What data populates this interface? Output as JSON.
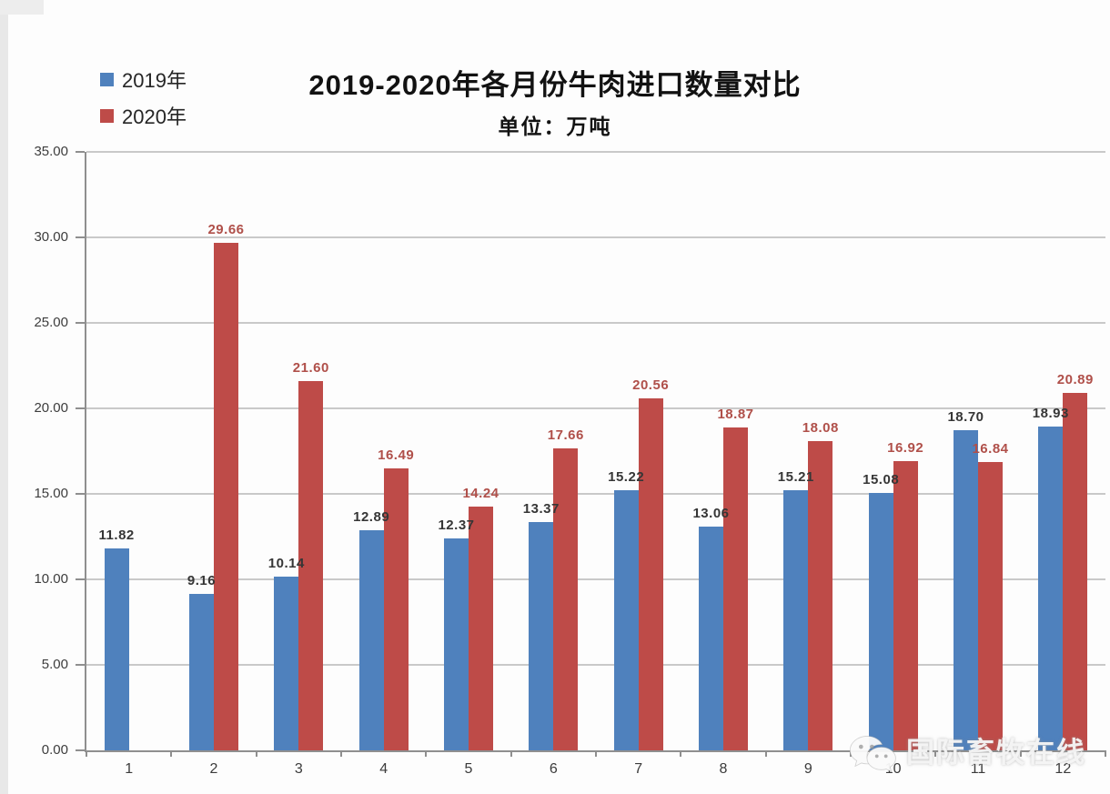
{
  "title": "2019-2020年各月份牛肉进口数量对比",
  "subtitle": "单位：万吨",
  "legend": {
    "items": [
      {
        "label": "2019年",
        "color": "#4F81BD"
      },
      {
        "label": "2020年",
        "color": "#BE4B48"
      }
    ]
  },
  "watermark": {
    "icon": "wechat-icon",
    "text": "国际畜牧在线"
  },
  "chart_data": {
    "type": "bar",
    "title": "2019-2020年各月份牛肉进口数量对比",
    "subtitle": "单位：万吨",
    "unit": "万吨",
    "categories": [
      "1",
      "2",
      "3",
      "4",
      "5",
      "6",
      "7",
      "8",
      "9",
      "10",
      "11",
      "12"
    ],
    "series": [
      {
        "name": "2019年",
        "color": "#4F81BD",
        "label_color": "#363636",
        "values": [
          11.82,
          9.16,
          10.14,
          12.89,
          12.37,
          13.37,
          15.22,
          13.06,
          15.21,
          15.08,
          18.7,
          18.93
        ]
      },
      {
        "name": "2020年",
        "color": "#BE4B48",
        "label_color": "#B0504A",
        "values": [
          null,
          29.66,
          21.6,
          16.49,
          14.24,
          17.66,
          20.56,
          18.87,
          18.08,
          16.92,
          16.84,
          20.89
        ]
      }
    ],
    "xlabel": "",
    "ylabel": "",
    "ylim": [
      0,
      35
    ],
    "ytick_step": 5,
    "ytick_format": "two-decimals",
    "grid": true,
    "legend_position": "top-left",
    "data_labels": true
  }
}
